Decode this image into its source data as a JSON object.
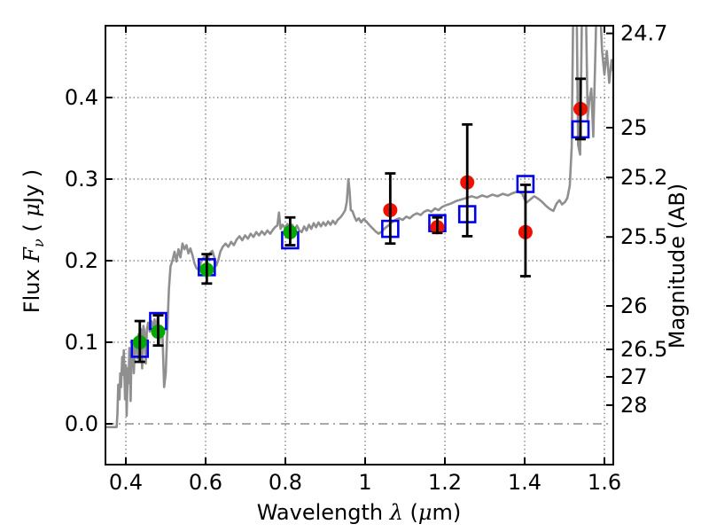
{
  "chart_data": {
    "type": "line+scatter",
    "title": "",
    "xlabel_parts": [
      {
        "t": "Wavelength  "
      },
      {
        "t": "λ",
        "math": true
      },
      {
        "t": " ("
      },
      {
        "t": "μ",
        "math": true
      },
      {
        "t": "m)"
      }
    ],
    "ylabel_left_parts": [
      {
        "t": "Flux  "
      },
      {
        "t": "F",
        "math": true
      },
      {
        "t": "ν",
        "math": true,
        "sub": true
      },
      {
        "t": "  ( "
      },
      {
        "t": "μ",
        "math": true
      },
      {
        "t": "Jy )"
      }
    ],
    "ylabel_right_parts": [
      {
        "t": "Magnitude (AB)"
      }
    ],
    "xlim": [
      0.3489,
      1.6222
    ],
    "ylim": [
      -0.05,
      0.488
    ],
    "ab_zeropoint": 23.9,
    "grid": {
      "major": "dotted",
      "zero_line": "dashdot",
      "legend": "none"
    },
    "x_ticks": [
      {
        "value": 0.4,
        "label": "0.4"
      },
      {
        "value": 0.6,
        "label": "0.6"
      },
      {
        "value": 0.8,
        "label": "0.8"
      },
      {
        "value": 1.0,
        "label": "1"
      },
      {
        "value": 1.2,
        "label": "1.2"
      },
      {
        "value": 1.4,
        "label": "1.4"
      },
      {
        "value": 1.6,
        "label": "1.6"
      }
    ],
    "y_ticks_left": [
      {
        "value": 0.0,
        "label": "0.0"
      },
      {
        "value": 0.1,
        "label": "0.1"
      },
      {
        "value": 0.2,
        "label": "0.2"
      },
      {
        "value": 0.3,
        "label": "0.3"
      },
      {
        "value": 0.4,
        "label": "0.4"
      }
    ],
    "y_ticks_right": [
      {
        "mag": 24.7,
        "label": "24.7"
      },
      {
        "mag": 25.0,
        "label": "25"
      },
      {
        "mag": 25.2,
        "label": "25.2"
      },
      {
        "mag": 25.5,
        "label": "25.5"
      },
      {
        "mag": 26.0,
        "label": "26"
      },
      {
        "mag": 26.5,
        "label": "26.5"
      },
      {
        "mag": 27.0,
        "label": "27"
      },
      {
        "mag": 28.0,
        "label": "28"
      }
    ],
    "colors": {
      "spectrum": "#8f8f8f",
      "green_marker": "#00a800",
      "red_marker": "#ee1100",
      "square_marker": "#0000ee",
      "error_bar": "#000000",
      "grid": "#555555",
      "frame": "#000000"
    },
    "series": [
      {
        "name": "observed-photometry-green",
        "marker": "circle",
        "color": "#00a800",
        "points": [
          {
            "x": 0.435,
            "y": 0.1,
            "lo": 0.076,
            "hi": 0.126
          },
          {
            "x": 0.481,
            "y": 0.113,
            "lo": 0.096,
            "hi": 0.133
          },
          {
            "x": 0.603,
            "y": 0.189,
            "lo": 0.172,
            "hi": 0.208
          },
          {
            "x": 0.812,
            "y": 0.235,
            "lo": 0.219,
            "hi": 0.253
          }
        ]
      },
      {
        "name": "observed-photometry-red",
        "marker": "circle",
        "color": "#ee1100",
        "points": [
          {
            "x": 1.063,
            "y": 0.262,
            "lo": 0.221,
            "hi": 0.307
          },
          {
            "x": 1.181,
            "y": 0.241,
            "lo": 0.234,
            "hi": 0.253
          },
          {
            "x": 1.256,
            "y": 0.296,
            "lo": 0.23,
            "hi": 0.367
          },
          {
            "x": 1.402,
            "y": 0.235,
            "lo": 0.181,
            "hi": 0.293
          },
          {
            "x": 1.54,
            "y": 0.386,
            "lo": 0.349,
            "hi": 0.423
          }
        ]
      },
      {
        "name": "model-photometry-squares",
        "marker": "square-open",
        "color": "#0000ee",
        "points": [
          {
            "x": 0.435,
            "y": 0.092
          },
          {
            "x": 0.481,
            "y": 0.126
          },
          {
            "x": 0.603,
            "y": 0.192
          },
          {
            "x": 0.812,
            "y": 0.225
          },
          {
            "x": 1.063,
            "y": 0.239
          },
          {
            "x": 1.181,
            "y": 0.246
          },
          {
            "x": 1.256,
            "y": 0.257
          },
          {
            "x": 1.402,
            "y": 0.294
          },
          {
            "x": 1.54,
            "y": 0.361
          }
        ]
      }
    ],
    "spectrum": {
      "name": "model-spectrum",
      "color": "#8f8f8f",
      "points": [
        [
          0.349,
          -0.004
        ],
        [
          0.377,
          -0.004
        ],
        [
          0.379,
          0.012
        ],
        [
          0.381,
          0.048
        ],
        [
          0.384,
          0.03
        ],
        [
          0.386,
          0.062
        ],
        [
          0.388,
          0.045
        ],
        [
          0.391,
          0.082
        ],
        [
          0.393,
          0.06
        ],
        [
          0.395,
          0.09
        ],
        [
          0.398,
          0.03
        ],
        [
          0.4,
          0.072
        ],
        [
          0.402,
          0.01
        ],
        [
          0.405,
          0.068
        ],
        [
          0.407,
          0.05
        ],
        [
          0.409,
          0.093
        ],
        [
          0.412,
          0.028
        ],
        [
          0.414,
          0.08
        ],
        [
          0.417,
          0.1
        ],
        [
          0.42,
          0.062
        ],
        [
          0.423,
          0.097
        ],
        [
          0.426,
          0.105
        ],
        [
          0.429,
          0.08
        ],
        [
          0.432,
          0.11
        ],
        [
          0.435,
          0.102
        ],
        [
          0.438,
          0.116
        ],
        [
          0.441,
          0.068
        ],
        [
          0.444,
          0.12
        ],
        [
          0.447,
          0.112
        ],
        [
          0.45,
          0.074
        ],
        [
          0.453,
          0.116
        ],
        [
          0.456,
          0.124
        ],
        [
          0.46,
          0.113
        ],
        [
          0.464,
          0.126
        ],
        [
          0.468,
          0.118
        ],
        [
          0.472,
          0.128
        ],
        [
          0.476,
          0.116
        ],
        [
          0.48,
          0.131
        ],
        [
          0.484,
          0.098
        ],
        [
          0.488,
          0.12
        ],
        [
          0.492,
          0.107
        ],
        [
          0.496,
          0.045
        ],
        [
          0.5,
          0.062
        ],
        [
          0.504,
          0.115
        ],
        [
          0.508,
          0.165
        ],
        [
          0.512,
          0.193
        ],
        [
          0.517,
          0.2
        ],
        [
          0.522,
          0.211
        ],
        [
          0.527,
          0.199
        ],
        [
          0.532,
          0.214
        ],
        [
          0.537,
          0.204
        ],
        [
          0.542,
          0.221
        ],
        [
          0.547,
          0.214
        ],
        [
          0.552,
          0.219
        ],
        [
          0.557,
          0.209
        ],
        [
          0.562,
          0.215
        ],
        [
          0.567,
          0.207
        ],
        [
          0.572,
          0.197
        ],
        [
          0.577,
          0.191
        ],
        [
          0.582,
          0.189
        ],
        [
          0.587,
          0.196
        ],
        [
          0.592,
          0.202
        ],
        [
          0.597,
          0.205
        ],
        [
          0.602,
          0.197
        ],
        [
          0.607,
          0.204
        ],
        [
          0.612,
          0.21
        ],
        [
          0.617,
          0.212
        ],
        [
          0.622,
          0.204
        ],
        [
          0.627,
          0.194
        ],
        [
          0.632,
          0.201
        ],
        [
          0.637,
          0.211
        ],
        [
          0.643,
          0.217
        ],
        [
          0.65,
          0.221
        ],
        [
          0.657,
          0.217
        ],
        [
          0.664,
          0.223
        ],
        [
          0.671,
          0.219
        ],
        [
          0.678,
          0.226
        ],
        [
          0.685,
          0.23
        ],
        [
          0.692,
          0.225
        ],
        [
          0.699,
          0.231
        ],
        [
          0.706,
          0.227
        ],
        [
          0.713,
          0.233
        ],
        [
          0.72,
          0.229
        ],
        [
          0.727,
          0.235
        ],
        [
          0.734,
          0.231
        ],
        [
          0.741,
          0.236
        ],
        [
          0.748,
          0.232
        ],
        [
          0.755,
          0.237
        ],
        [
          0.762,
          0.233
        ],
        [
          0.769,
          0.238
        ],
        [
          0.776,
          0.242
        ],
        [
          0.78,
          0.243
        ],
        [
          0.784,
          0.259
        ],
        [
          0.788,
          0.239
        ],
        [
          0.793,
          0.244
        ],
        [
          0.799,
          0.24
        ],
        [
          0.805,
          0.245
        ],
        [
          0.811,
          0.24
        ],
        [
          0.817,
          0.244
        ],
        [
          0.823,
          0.238
        ],
        [
          0.829,
          0.243
        ],
        [
          0.835,
          0.237
        ],
        [
          0.841,
          0.235
        ],
        [
          0.847,
          0.242
        ],
        [
          0.853,
          0.237
        ],
        [
          0.859,
          0.244
        ],
        [
          0.865,
          0.239
        ],
        [
          0.871,
          0.246
        ],
        [
          0.877,
          0.241
        ],
        [
          0.883,
          0.247
        ],
        [
          0.889,
          0.242
        ],
        [
          0.895,
          0.247
        ],
        [
          0.901,
          0.243
        ],
        [
          0.907,
          0.248
        ],
        [
          0.913,
          0.244
        ],
        [
          0.919,
          0.249
        ],
        [
          0.925,
          0.245
        ],
        [
          0.931,
          0.25
        ],
        [
          0.938,
          0.253
        ],
        [
          0.944,
          0.257
        ],
        [
          0.95,
          0.262
        ],
        [
          0.954,
          0.272
        ],
        [
          0.958,
          0.3
        ],
        [
          0.961,
          0.285
        ],
        [
          0.964,
          0.262
        ],
        [
          0.968,
          0.261
        ],
        [
          0.973,
          0.254
        ],
        [
          0.978,
          0.249
        ],
        [
          0.984,
          0.252
        ],
        [
          0.99,
          0.247
        ],
        [
          0.996,
          0.251
        ],
        [
          1.003,
          0.248
        ],
        [
          1.01,
          0.244
        ],
        [
          1.018,
          0.24
        ],
        [
          1.026,
          0.236
        ],
        [
          1.034,
          0.233
        ],
        [
          1.042,
          0.236
        ],
        [
          1.05,
          0.24
        ],
        [
          1.058,
          0.243
        ],
        [
          1.067,
          0.247
        ],
        [
          1.076,
          0.25
        ],
        [
          1.085,
          0.252
        ],
        [
          1.094,
          0.25
        ],
        [
          1.103,
          0.254
        ],
        [
          1.112,
          0.252
        ],
        [
          1.121,
          0.256
        ],
        [
          1.13,
          0.258
        ],
        [
          1.139,
          0.256
        ],
        [
          1.148,
          0.26
        ],
        [
          1.157,
          0.262
        ],
        [
          1.166,
          0.26
        ],
        [
          1.175,
          0.264
        ],
        [
          1.184,
          0.262
        ],
        [
          1.193,
          0.266
        ],
        [
          1.203,
          0.268
        ],
        [
          1.215,
          0.27
        ],
        [
          1.228,
          0.273
        ],
        [
          1.241,
          0.275
        ],
        [
          1.254,
          0.277
        ],
        [
          1.267,
          0.279
        ],
        [
          1.28,
          0.277
        ],
        [
          1.293,
          0.28
        ],
        [
          1.306,
          0.278
        ],
        [
          1.319,
          0.281
        ],
        [
          1.332,
          0.279
        ],
        [
          1.345,
          0.282
        ],
        [
          1.358,
          0.28
        ],
        [
          1.371,
          0.283
        ],
        [
          1.384,
          0.285
        ],
        [
          1.394,
          0.282
        ],
        [
          1.404,
          0.271
        ],
        [
          1.414,
          0.275
        ],
        [
          1.424,
          0.279
        ],
        [
          1.434,
          0.276
        ],
        [
          1.444,
          0.272
        ],
        [
          1.454,
          0.267
        ],
        [
          1.464,
          0.263
        ],
        [
          1.472,
          0.261
        ],
        [
          1.48,
          0.27
        ],
        [
          1.487,
          0.274
        ],
        [
          1.494,
          0.269
        ],
        [
          1.501,
          0.272
        ],
        [
          1.507,
          0.277
        ],
        [
          1.513,
          0.292
        ],
        [
          1.518,
          0.34
        ],
        [
          1.522,
          0.52
        ],
        [
          1.53,
          0.53
        ],
        [
          1.534,
          0.342
        ],
        [
          1.539,
          0.33
        ],
        [
          1.544,
          0.52
        ],
        [
          1.553,
          0.525
        ],
        [
          1.558,
          0.373
        ],
        [
          1.562,
          0.396
        ],
        [
          1.567,
          0.411
        ],
        [
          1.572,
          0.352
        ],
        [
          1.577,
          0.45
        ],
        [
          1.581,
          0.53
        ],
        [
          1.588,
          0.524
        ],
        [
          1.594,
          0.458
        ],
        [
          1.6,
          0.428
        ],
        [
          1.606,
          0.457
        ],
        [
          1.612,
          0.418
        ],
        [
          1.618,
          0.446
        ],
        [
          1.622,
          0.432
        ]
      ]
    }
  }
}
